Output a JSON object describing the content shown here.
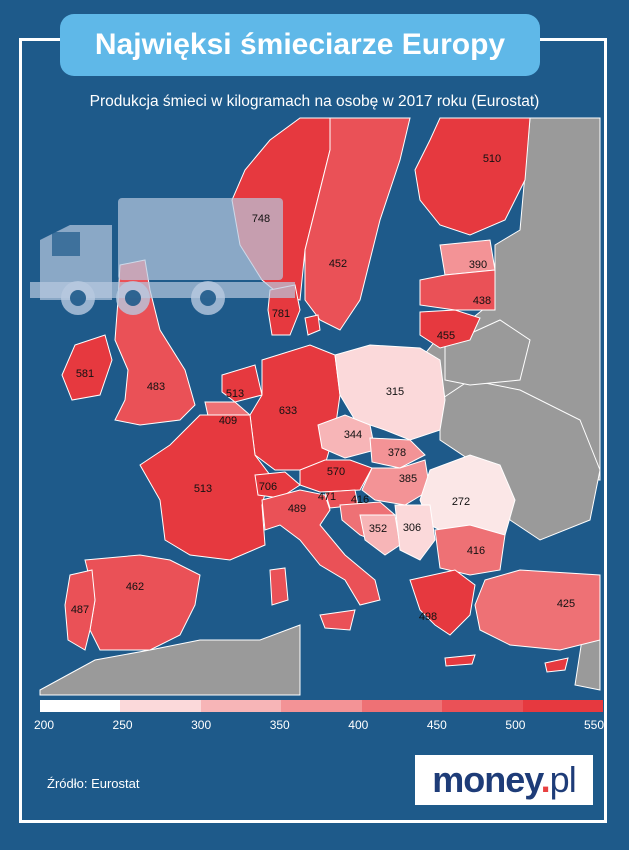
{
  "title": "Najwięksi śmieciarze Europy",
  "subtitle": "Produkcja śmieci w kilogramach na osobę w 2017 roku (Eurostat)",
  "legend": {
    "ticks": [
      "200",
      "250",
      "300",
      "350",
      "400",
      "450",
      "500",
      "550"
    ],
    "colors": [
      "#ffffff",
      "#fbd9da",
      "#f7b5b7",
      "#f39396",
      "#ee7175",
      "#ea5157",
      "#e6393f"
    ]
  },
  "source": "Źródło: Eurostat",
  "logo": {
    "brand": "money",
    "dot": ".",
    "tld": "pl"
  },
  "chart_data": {
    "type": "map",
    "unit": "kg per person",
    "regions": [
      {
        "id": "norway",
        "value": 748
      },
      {
        "id": "sweden",
        "value": 452
      },
      {
        "id": "finland",
        "value": 510
      },
      {
        "id": "estonia",
        "value": 390
      },
      {
        "id": "latvia",
        "value": 438
      },
      {
        "id": "lithuania",
        "value": 455
      },
      {
        "id": "denmark",
        "value": 781
      },
      {
        "id": "ireland",
        "value": 581
      },
      {
        "id": "uk",
        "value": 483
      },
      {
        "id": "netherlands",
        "value": 513
      },
      {
        "id": "belgium",
        "value": 409
      },
      {
        "id": "germany",
        "value": 633
      },
      {
        "id": "poland",
        "value": 315
      },
      {
        "id": "czechia",
        "value": 344
      },
      {
        "id": "slovakia",
        "value": 378
      },
      {
        "id": "austria",
        "value": 570
      },
      {
        "id": "hungary",
        "value": 385
      },
      {
        "id": "france",
        "value": 513
      },
      {
        "id": "switzerland",
        "value": 706
      },
      {
        "id": "slovenia",
        "value": 471
      },
      {
        "id": "croatia",
        "value": 416
      },
      {
        "id": "romania",
        "value": 272
      },
      {
        "id": "italy",
        "value": 489
      },
      {
        "id": "bosnia",
        "value": 352
      },
      {
        "id": "serbia",
        "value": 306
      },
      {
        "id": "bulgaria",
        "value": 416
      },
      {
        "id": "spain",
        "value": 462
      },
      {
        "id": "portugal",
        "value": 487
      },
      {
        "id": "greece",
        "value": 498
      },
      {
        "id": "turkey",
        "value": 425
      }
    ]
  }
}
